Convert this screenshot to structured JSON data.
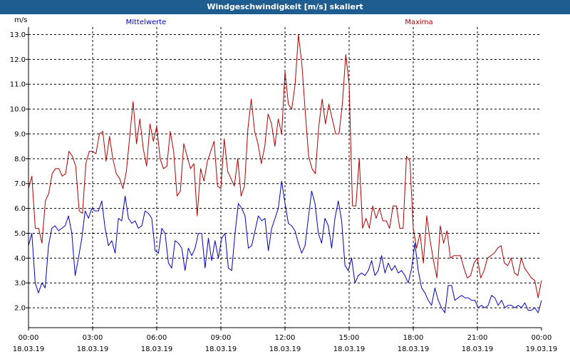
{
  "window": {
    "title": "Windgeschwindigkeit [m/s] skaliert"
  },
  "colors": {
    "titlebar": "#1f5d91",
    "mean": "#0000c0",
    "max": "#b00000",
    "grid": "#000000"
  },
  "chart_data": {
    "type": "line",
    "title": "Windgeschwindigkeit [m/s] skaliert",
    "ylabel": "m/s",
    "ylim": [
      1.2,
      13.3
    ],
    "xlim": [
      0,
      24
    ],
    "grid": true,
    "y_ticks": [
      "2.0",
      "3.0",
      "4.0",
      "5.0",
      "6.0",
      "7.0",
      "8.0",
      "9.0",
      "10.0",
      "11.0",
      "12.0",
      "13.0"
    ],
    "y_tick_values": [
      2,
      3,
      4,
      5,
      6,
      7,
      8,
      9,
      10,
      11,
      12,
      13
    ],
    "x_tick_hours": [
      0,
      3,
      6,
      9,
      12,
      15,
      18,
      21,
      24
    ],
    "x_ticks_time": [
      "00:00",
      "03:00",
      "06:00",
      "09:00",
      "12:00",
      "15:00",
      "18:00",
      "21:00",
      "00:00"
    ],
    "x_ticks_date": [
      "18.03.19",
      "18.03.19",
      "18.03.19",
      "18.03.19",
      "18.03.19",
      "18.03.19",
      "18.03.19",
      "18.03.19",
      "19.03.19"
    ],
    "x_step_hours": 0.1667,
    "series": [
      {
        "name": "Mittelwerte",
        "legend_position": "top-left",
        "values": [
          4.5,
          5.0,
          3.0,
          2.6,
          3.0,
          2.8,
          4.5,
          5.2,
          5.3,
          5.1,
          5.2,
          5.3,
          5.7,
          5.0,
          3.3,
          4.0,
          4.8,
          5.9,
          5.6,
          6.0,
          5.9,
          5.9,
          6.3,
          5.2,
          4.5,
          4.7,
          4.2,
          5.6,
          5.5,
          6.5,
          5.6,
          5.4,
          5.5,
          5.2,
          5.3,
          5.9,
          5.8,
          5.6,
          4.3,
          4.2,
          5.2,
          5.0,
          3.8,
          3.6,
          4.7,
          4.6,
          4.4,
          3.5,
          4.4,
          4.1,
          4.4,
          5.0,
          5.0,
          3.6,
          4.8,
          3.9,
          4.7,
          4.0,
          4.8,
          5.0,
          3.6,
          3.5,
          5.0,
          6.2,
          6.0,
          5.7,
          4.4,
          4.5,
          5.1,
          5.7,
          5.5,
          5.6,
          4.3,
          5.2,
          5.6,
          6.0,
          7.1,
          6.2,
          5.4,
          5.3,
          5.1,
          4.6,
          4.2,
          4.5,
          5.6,
          6.7,
          6.2,
          5.0,
          4.6,
          5.6,
          5.3,
          4.4,
          5.6,
          6.3,
          5.5,
          3.7,
          3.5,
          4.0,
          3.0,
          3.3,
          3.4,
          3.3,
          3.5,
          3.9,
          3.3,
          3.5,
          4.1,
          3.4,
          3.8,
          3.5,
          3.7,
          3.4,
          3.5,
          3.3,
          3.0,
          3.6,
          4.6,
          3.5,
          2.8,
          2.6,
          2.3,
          2.1,
          2.8,
          2.3,
          2.0,
          1.8,
          2.9,
          2.9,
          2.3,
          2.4,
          2.5,
          2.4,
          2.4,
          2.3,
          2.3,
          2.0,
          2.1,
          2.0,
          2.1,
          2.5,
          2.4,
          2.1,
          2.3,
          2.0,
          2.1,
          2.1,
          2.0,
          2.1,
          2.0,
          2.2,
          1.9,
          1.9,
          2.0,
          1.8,
          2.3
        ]
      },
      {
        "name": "Maxima",
        "legend_position": "top-right",
        "values": [
          6.8,
          7.3,
          5.2,
          5.2,
          4.6,
          6.3,
          6.6,
          7.4,
          7.6,
          7.6,
          7.3,
          7.4,
          8.3,
          8.1,
          7.7,
          5.9,
          5.8,
          7.8,
          8.3,
          8.3,
          8.2,
          9.0,
          9.1,
          7.9,
          8.9,
          8.0,
          7.4,
          7.2,
          6.8,
          7.5,
          8.9,
          10.3,
          8.6,
          9.6,
          8.4,
          7.7,
          9.4,
          8.7,
          9.3,
          8.0,
          7.6,
          7.7,
          9.1,
          8.3,
          6.5,
          6.7,
          8.6,
          8.1,
          7.6,
          7.8,
          5.7,
          7.6,
          7.1,
          7.9,
          8.3,
          8.7,
          6.9,
          6.8,
          8.8,
          7.5,
          7.2,
          6.9,
          8.0,
          6.5,
          6.9,
          9.2,
          10.4,
          9.1,
          8.6,
          7.8,
          8.5,
          9.8,
          9.4,
          8.5,
          9.6,
          9.0,
          11.5,
          10.2,
          10.0,
          11.0,
          13.0,
          11.8,
          9.9,
          8.1,
          7.6,
          7.4,
          9.3,
          10.4,
          9.4,
          10.2,
          9.6,
          9.0,
          9.0,
          10.2,
          12.2,
          11.0,
          6.1,
          6.1,
          8.0,
          5.2,
          5.6,
          5.2,
          6.1,
          5.6,
          6.0,
          5.5,
          5.5,
          5.2,
          6.1,
          6.1,
          5.2,
          5.2,
          8.1,
          7.9,
          5.2,
          4.4,
          5.0,
          3.8,
          5.7,
          4.7,
          3.9,
          3.2,
          5.3,
          4.6,
          5.1,
          4.0,
          4.1,
          4.1,
          4.1,
          3.6,
          3.2,
          3.3,
          3.8,
          4.0,
          3.2,
          3.5,
          4.0,
          4.1,
          4.2,
          4.4,
          4.5,
          3.8,
          3.7,
          4.0,
          3.4,
          3.3,
          4.0,
          3.6,
          3.4,
          3.2,
          3.1,
          2.4,
          3.1
        ]
      }
    ]
  }
}
